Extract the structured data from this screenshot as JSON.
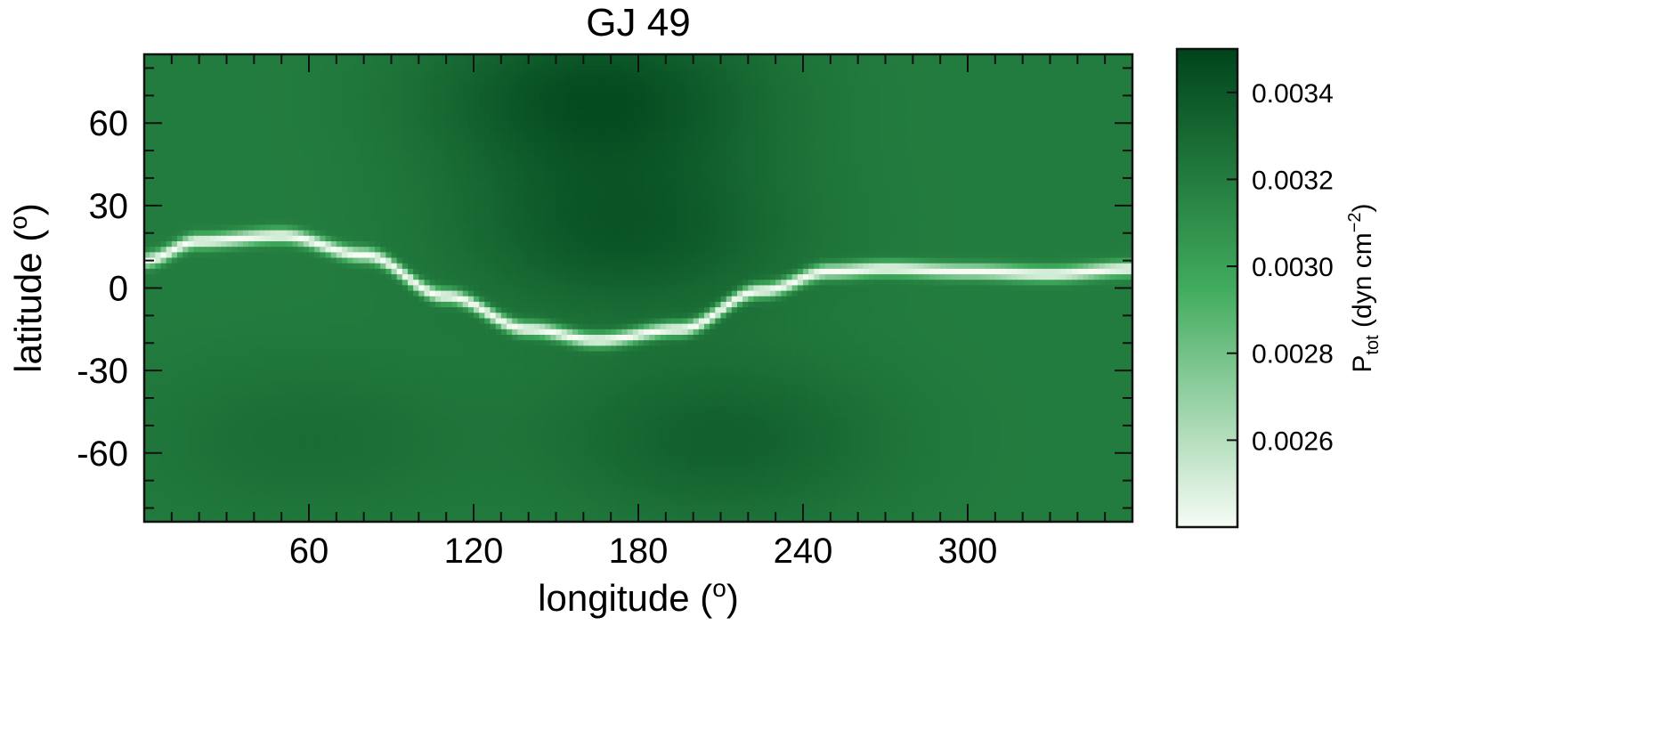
{
  "chart_data": {
    "type": "heatmap",
    "title": "GJ 49",
    "xlabel": "longitude (",
    "xlabel_unit": "o",
    "xlabel_close": ")",
    "ylabel": "latitude (",
    "ylabel_unit": "o",
    "ylabel_close": ")",
    "xlim": [
      0,
      360
    ],
    "ylim": [
      -85,
      85
    ],
    "xticks": [
      60,
      120,
      180,
      240,
      300
    ],
    "xtick_labels": [
      "60",
      "120",
      "180",
      "240",
      "300"
    ],
    "yticks": [
      60,
      30,
      0,
      -30,
      -60
    ],
    "ytick_labels": [
      "60",
      "30",
      "0",
      "-30",
      "-60"
    ],
    "colormap": "Greens",
    "colors": {
      "light": "#f7fcf5",
      "mid": "#41ab5d",
      "dark": "#00441b"
    },
    "colorbar": {
      "range": [
        0.0024,
        0.0035
      ],
      "ticks": [
        0.0034,
        0.0032,
        0.003,
        0.0028,
        0.0026
      ],
      "tick_labels": [
        "0.0034",
        "0.0032",
        "0.0030",
        "0.0028",
        "0.0026"
      ],
      "label_main": "P",
      "label_sub": "tot",
      "label_units": "(dyn cm",
      "label_sup": "−2",
      "label_close": ")"
    },
    "field": {
      "background_value": 0.0032,
      "minimum_value": 0.0024,
      "dark_regions": [
        {
          "lon": 165,
          "lat": 70,
          "value": 0.00345
        },
        {
          "lon": 175,
          "lat": 20,
          "value": 0.0034
        },
        {
          "lon": 210,
          "lat": -55,
          "value": 0.00335
        },
        {
          "lon": 60,
          "lat": -55,
          "value": 0.00328
        }
      ],
      "current_sheet": {
        "lon": [
          0,
          20,
          50,
          80,
          110,
          140,
          165,
          195,
          225,
          250,
          270,
          300,
          330,
          360
        ],
        "lat": [
          10,
          17,
          19,
          12,
          -3,
          -15,
          -19,
          -15,
          -1,
          6,
          7,
          6,
          5,
          7
        ]
      }
    }
  }
}
